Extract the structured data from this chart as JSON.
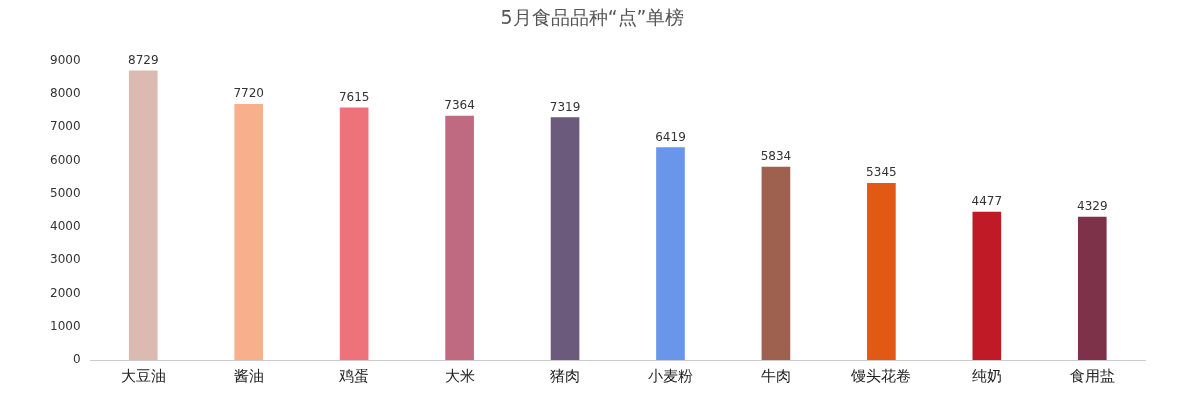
{
  "chart_data": {
    "type": "bar",
    "title": "5月食品品种“点”单榜",
    "categories": [
      "大豆油",
      "酱油",
      "鸡蛋",
      "大米",
      "猪肉",
      "小麦粉",
      "牛肉",
      "馒头花卷",
      "纯奶",
      "食用盐"
    ],
    "values": [
      8729,
      7720,
      7615,
      7364,
      7319,
      6419,
      5834,
      5345,
      4477,
      4329
    ],
    "colors": [
      "#dbbab1",
      "#f8b08c",
      "#ee727a",
      "#c06a82",
      "#6b5a7c",
      "#6996ea",
      "#9e604f",
      "#e05a14",
      "#c01a26",
      "#7e3249"
    ],
    "ylim": [
      0,
      9000
    ],
    "yticks": [
      0,
      1000,
      2000,
      3000,
      4000,
      5000,
      6000,
      7000,
      8000,
      9000
    ],
    "grid": false,
    "legend": false,
    "data_labels": true
  }
}
